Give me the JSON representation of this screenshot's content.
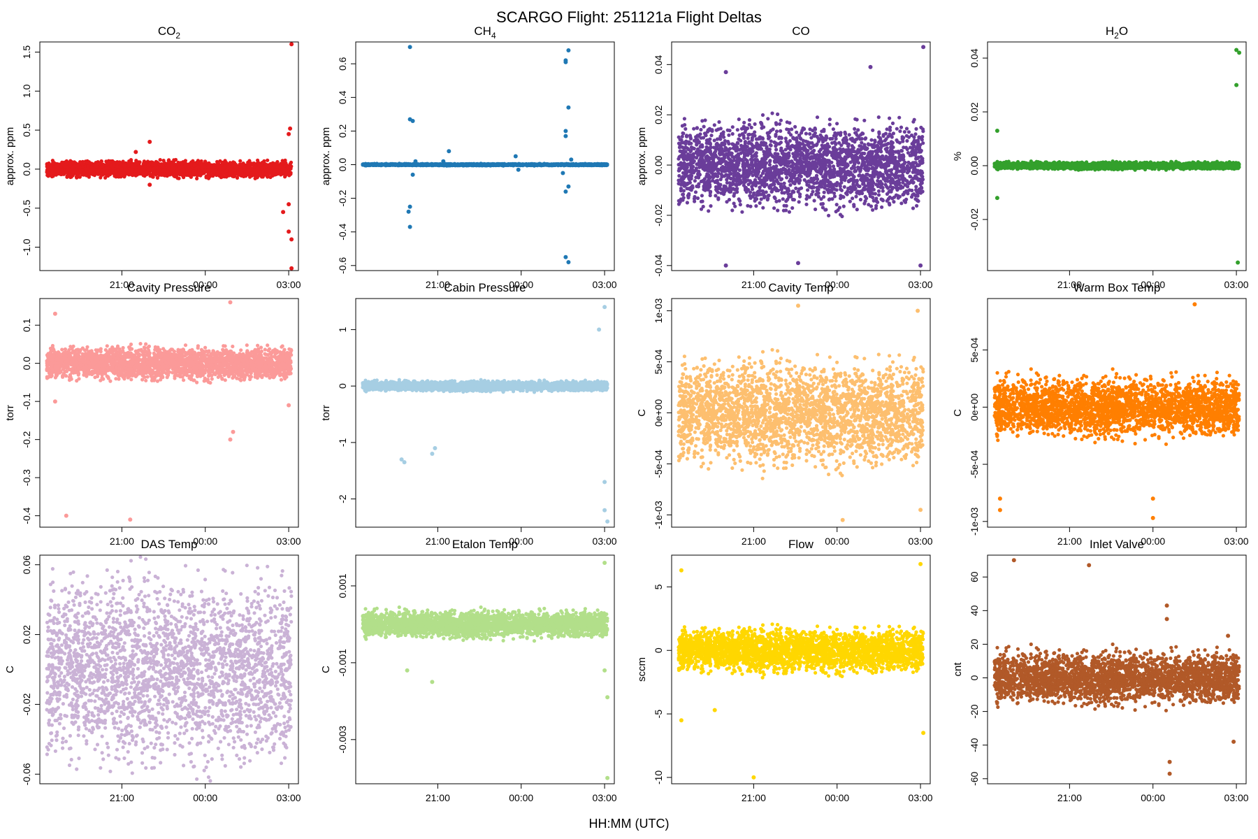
{
  "figure": {
    "title": "SCARGO Flight: 251121a  Flight Deltas",
    "xlabel": "HH:MM (UTC)"
  },
  "chart_data": [
    {
      "type": "scatter",
      "title": "CO",
      "title_sub": "2",
      "ylabel": "approx. ppm",
      "color": "#e41a1c",
      "xlim": [
        18.05,
        27.35
      ],
      "ylim": [
        -1.3,
        1.63
      ],
      "xticks": [
        21,
        24,
        27
      ],
      "xtick_labels": [
        "21:00",
        "00:00",
        "03:00"
      ],
      "yticks": [
        -1.0,
        -0.5,
        0.0,
        0.5,
        1.0,
        1.5
      ],
      "ytick_labels": [
        "-1.0",
        "-0.5",
        "0.0",
        "0.5",
        "1.0",
        "1.5"
      ],
      "x_range": [
        18.3,
        27.1
      ],
      "band": [
        -0.12,
        0.12
      ],
      "outliers": [
        [
          27.1,
          1.6
        ],
        [
          27.05,
          0.52
        ],
        [
          27.0,
          0.45
        ],
        [
          22.0,
          0.35
        ],
        [
          21.5,
          0.22
        ],
        [
          27.0,
          -0.8
        ],
        [
          27.1,
          -0.9
        ],
        [
          27.1,
          -1.27
        ],
        [
          26.8,
          -0.55
        ],
        [
          27.0,
          -0.45
        ],
        [
          22.0,
          -0.2
        ]
      ]
    },
    {
      "type": "scatter",
      "title": "CH",
      "title_sub": "4",
      "ylabel": "approx. ppm",
      "color": "#1f78b4",
      "xlim": [
        18.05,
        27.35
      ],
      "ylim": [
        -0.63,
        0.73
      ],
      "xticks": [
        21,
        24,
        27
      ],
      "xtick_labels": [
        "21:00",
        "00:00",
        "03:00"
      ],
      "yticks": [
        -0.6,
        -0.4,
        -0.2,
        0.0,
        0.2,
        0.4,
        0.6
      ],
      "ytick_labels": [
        "-0.6",
        "-0.4",
        "-0.2",
        "0.0",
        "0.2",
        "0.4",
        "0.6"
      ],
      "x_range": [
        18.3,
        27.1
      ],
      "band": [
        -0.006,
        0.006
      ],
      "outliers": [
        [
          20.0,
          0.7
        ],
        [
          20.0,
          0.27
        ],
        [
          20.1,
          0.26
        ],
        [
          20.0,
          -0.25
        ],
        [
          19.95,
          -0.28
        ],
        [
          20.0,
          -0.37
        ],
        [
          20.2,
          0.02
        ],
        [
          20.1,
          -0.06
        ],
        [
          21.4,
          0.08
        ],
        [
          21.2,
          0.02
        ],
        [
          23.8,
          0.05
        ],
        [
          23.9,
          -0.03
        ],
        [
          25.6,
          0.61
        ],
        [
          25.7,
          0.68
        ],
        [
          25.6,
          0.62
        ],
        [
          25.7,
          0.34
        ],
        [
          25.6,
          0.2
        ],
        [
          25.6,
          0.17
        ],
        [
          25.7,
          -0.13
        ],
        [
          25.6,
          -0.16
        ],
        [
          25.6,
          -0.55
        ],
        [
          25.7,
          -0.58
        ],
        [
          25.5,
          -0.05
        ],
        [
          25.8,
          0.03
        ]
      ]
    },
    {
      "type": "scatter",
      "title": "CO",
      "title_sub": "",
      "ylabel": "approx. ppm",
      "color": "#6a3d9a",
      "xlim": [
        18.05,
        27.35
      ],
      "ylim": [
        -0.042,
        0.049
      ],
      "xticks": [
        21,
        24,
        27
      ],
      "xtick_labels": [
        "21:00",
        "00:00",
        "03:00"
      ],
      "yticks": [
        -0.04,
        -0.02,
        0.0,
        0.02,
        0.04
      ],
      "ytick_labels": [
        "-0.04",
        "-0.02",
        "0.00",
        "0.02",
        "0.04"
      ],
      "x_range": [
        18.3,
        27.1
      ],
      "band": [
        -0.02,
        0.02
      ],
      "outliers": [
        [
          27.1,
          0.047
        ],
        [
          25.2,
          0.039
        ],
        [
          20.0,
          0.037
        ],
        [
          27.0,
          -0.04
        ],
        [
          20.0,
          -0.04
        ],
        [
          22.6,
          -0.039
        ]
      ]
    },
    {
      "type": "scatter",
      "title": "H",
      "title_sub": "2",
      "title_suffix": "O",
      "ylabel": "%",
      "color": "#33a02c",
      "xlim": [
        18.05,
        27.35
      ],
      "ylim": [
        -0.039,
        0.046
      ],
      "xticks": [
        21,
        24,
        27
      ],
      "xtick_labels": [
        "21:00",
        "00:00",
        "03:00"
      ],
      "yticks": [
        -0.02,
        0.0,
        0.02,
        0.04
      ],
      "ytick_labels": [
        "-0.02",
        "0.00",
        "0.02",
        "0.04"
      ],
      "x_range": [
        18.3,
        27.1
      ],
      "band": [
        -0.0015,
        0.0015
      ],
      "outliers": [
        [
          27.0,
          0.043
        ],
        [
          27.1,
          0.042
        ],
        [
          27.0,
          0.03
        ],
        [
          27.05,
          -0.036
        ],
        [
          18.4,
          0.013
        ],
        [
          18.4,
          -0.012
        ]
      ]
    },
    {
      "type": "scatter",
      "title": "Cavity Pressure",
      "title_sub": "",
      "ylabel": "torr",
      "color": "#fb9a99",
      "xlim": [
        18.05,
        27.35
      ],
      "ylim": [
        -0.43,
        0.17
      ],
      "xticks": [
        21,
        24,
        27
      ],
      "xtick_labels": [
        "21:00",
        "00:00",
        "03:00"
      ],
      "yticks": [
        -0.4,
        -0.3,
        -0.2,
        -0.1,
        0.0,
        0.1
      ],
      "ytick_labels": [
        "-0.4",
        "-0.3",
        "-0.2",
        "-0.1",
        "0.0",
        "0.1"
      ],
      "x_range": [
        18.3,
        27.1
      ],
      "band": [
        -0.05,
        0.05
      ],
      "outliers": [
        [
          19.0,
          -0.4
        ],
        [
          21.3,
          -0.41
        ],
        [
          24.9,
          0.16
        ],
        [
          24.9,
          -0.2
        ],
        [
          25.0,
          -0.18
        ],
        [
          18.6,
          0.13
        ],
        [
          18.6,
          -0.1
        ],
        [
          27.0,
          -0.11
        ]
      ]
    },
    {
      "type": "scatter",
      "title": "Cabin Pressure",
      "title_sub": "",
      "ylabel": "torr",
      "color": "#a6cee3",
      "xlim": [
        18.05,
        27.35
      ],
      "ylim": [
        -2.5,
        1.55
      ],
      "xticks": [
        21,
        24,
        27
      ],
      "xtick_labels": [
        "21:00",
        "00:00",
        "03:00"
      ],
      "yticks": [
        -2,
        -1,
        0,
        1
      ],
      "ytick_labels": [
        "-2",
        "-1",
        "0",
        "1"
      ],
      "x_range": [
        18.3,
        27.1
      ],
      "band": [
        -0.1,
        0.1
      ],
      "outliers": [
        [
          19.8,
          -1.35
        ],
        [
          19.7,
          -1.3
        ],
        [
          20.8,
          -1.2
        ],
        [
          20.9,
          -1.1
        ],
        [
          27.0,
          -2.2
        ],
        [
          27.1,
          -2.4
        ],
        [
          27.0,
          -1.7
        ],
        [
          27.0,
          1.4
        ],
        [
          26.8,
          1.0
        ]
      ]
    },
    {
      "type": "scatter",
      "title": "Cavity Temp",
      "title_sub": "",
      "ylabel": "C",
      "color": "#fdbf6f",
      "xlim": [
        18.05,
        27.35
      ],
      "ylim": [
        -0.00112,
        0.00112
      ],
      "xticks": [
        21,
        24,
        27
      ],
      "xtick_labels": [
        "21:00",
        "00:00",
        "03:00"
      ],
      "yticks": [
        -0.001,
        -0.0005,
        0.0,
        0.0005,
        0.001
      ],
      "ytick_labels": [
        "-1e-03",
        "-5e-04",
        "0e+00",
        "5e-04",
        "1e-03"
      ],
      "x_range": [
        18.3,
        27.1
      ],
      "band": [
        -0.0006,
        0.0006
      ],
      "outliers": [
        [
          22.6,
          0.00105
        ],
        [
          24.2,
          -0.00105
        ],
        [
          26.9,
          0.001
        ],
        [
          27.0,
          -0.00095
        ]
      ]
    },
    {
      "type": "scatter",
      "title": "Warm Box Temp",
      "title_sub": "",
      "ylabel": "C",
      "color": "#ff7f00",
      "xlim": [
        18.05,
        27.35
      ],
      "ylim": [
        -0.00105,
        0.00095
      ],
      "xticks": [
        21,
        24,
        27
      ],
      "xtick_labels": [
        "21:00",
        "00:00",
        "03:00"
      ],
      "yticks": [
        -0.001,
        -0.0005,
        0.0,
        0.0005
      ],
      "ytick_labels": [
        "-1e-03",
        "-5e-04",
        "0e+00",
        "5e-04"
      ],
      "x_range": [
        18.3,
        27.1
      ],
      "band": [
        -0.0003,
        0.0003
      ],
      "outliers": [
        [
          25.5,
          0.0009
        ],
        [
          24.0,
          -0.00097
        ],
        [
          18.5,
          -0.0009
        ],
        [
          18.5,
          -0.0008
        ],
        [
          24.0,
          -0.0008
        ]
      ]
    },
    {
      "type": "scatter",
      "title": "DAS Temp",
      "title_sub": "",
      "ylabel": "C",
      "color": "#cab2d6",
      "xlim": [
        18.05,
        27.35
      ],
      "ylim": [
        -0.0655,
        0.0655
      ],
      "xticks": [
        21,
        24,
        27
      ],
      "xtick_labels": [
        "21:00",
        "00:00",
        "03:00"
      ],
      "yticks": [
        -0.06,
        -0.02,
        0.02,
        0.06
      ],
      "ytick_labels": [
        "-0.06",
        "-0.02",
        "0.02",
        "0.06"
      ],
      "x_range": [
        18.3,
        27.1
      ],
      "band": [
        -0.0625,
        0.0625
      ],
      "outliers": []
    },
    {
      "type": "scatter",
      "title": "Etalon Temp",
      "title_sub": "",
      "ylabel": "C",
      "color": "#b2df8a",
      "xlim": [
        18.05,
        27.35
      ],
      "ylim": [
        -0.00415,
        0.0018
      ],
      "xticks": [
        21,
        24,
        27
      ],
      "xtick_labels": [
        "21:00",
        "00:00",
        "03:00"
      ],
      "yticks": [
        -0.003,
        -0.001,
        0.001
      ],
      "ytick_labels": [
        "-0.003",
        "-0.001",
        "0.001"
      ],
      "x_range": [
        18.3,
        27.1
      ],
      "band": [
        -0.0004,
        0.0004
      ],
      "outliers": [
        [
          27.0,
          0.0016
        ],
        [
          27.1,
          -0.0019
        ],
        [
          27.1,
          -0.004
        ],
        [
          20.8,
          -0.0015
        ],
        [
          19.9,
          -0.0012
        ],
        [
          27.0,
          -0.0012
        ]
      ]
    },
    {
      "type": "scatter",
      "title": "Flow",
      "title_sub": "",
      "ylabel": "sccm",
      "color": "#ffd700",
      "xlim": [
        18.05,
        27.35
      ],
      "ylim": [
        -10.5,
        7.5
      ],
      "xticks": [
        21,
        24,
        27
      ],
      "xtick_labels": [
        "21:00",
        "00:00",
        "03:00"
      ],
      "yticks": [
        -10,
        -5,
        0,
        5
      ],
      "ytick_labels": [
        "-10",
        "-5",
        "0",
        "5"
      ],
      "x_range": [
        18.3,
        27.1
      ],
      "band": [
        -2.0,
        2.0
      ],
      "outliers": [
        [
          21.0,
          -10.0
        ],
        [
          19.6,
          -4.7
        ],
        [
          18.4,
          6.3
        ],
        [
          27.0,
          6.8
        ],
        [
          27.1,
          -6.5
        ],
        [
          18.4,
          -5.5
        ]
      ]
    },
    {
      "type": "scatter",
      "title": "Inlet Valve",
      "title_sub": "",
      "ylabel": "cnt",
      "color": "#b15928",
      "xlim": [
        18.05,
        27.35
      ],
      "ylim": [
        -63,
        73
      ],
      "xticks": [
        21,
        24,
        27
      ],
      "xtick_labels": [
        "21:00",
        "00:00",
        "03:00"
      ],
      "yticks": [
        -60,
        -40,
        -20,
        0,
        20,
        40,
        60
      ],
      "ytick_labels": [
        "-60",
        "-40",
        "-20",
        "0",
        "20",
        "40",
        "60"
      ],
      "x_range": [
        18.3,
        27.1
      ],
      "band": [
        -18,
        18
      ],
      "outliers": [
        [
          19.0,
          70
        ],
        [
          21.7,
          67
        ],
        [
          24.5,
          43
        ],
        [
          24.6,
          -57
        ],
        [
          24.6,
          -50
        ],
        [
          26.9,
          -38
        ],
        [
          24.5,
          35
        ],
        [
          26.7,
          25
        ]
      ]
    }
  ]
}
